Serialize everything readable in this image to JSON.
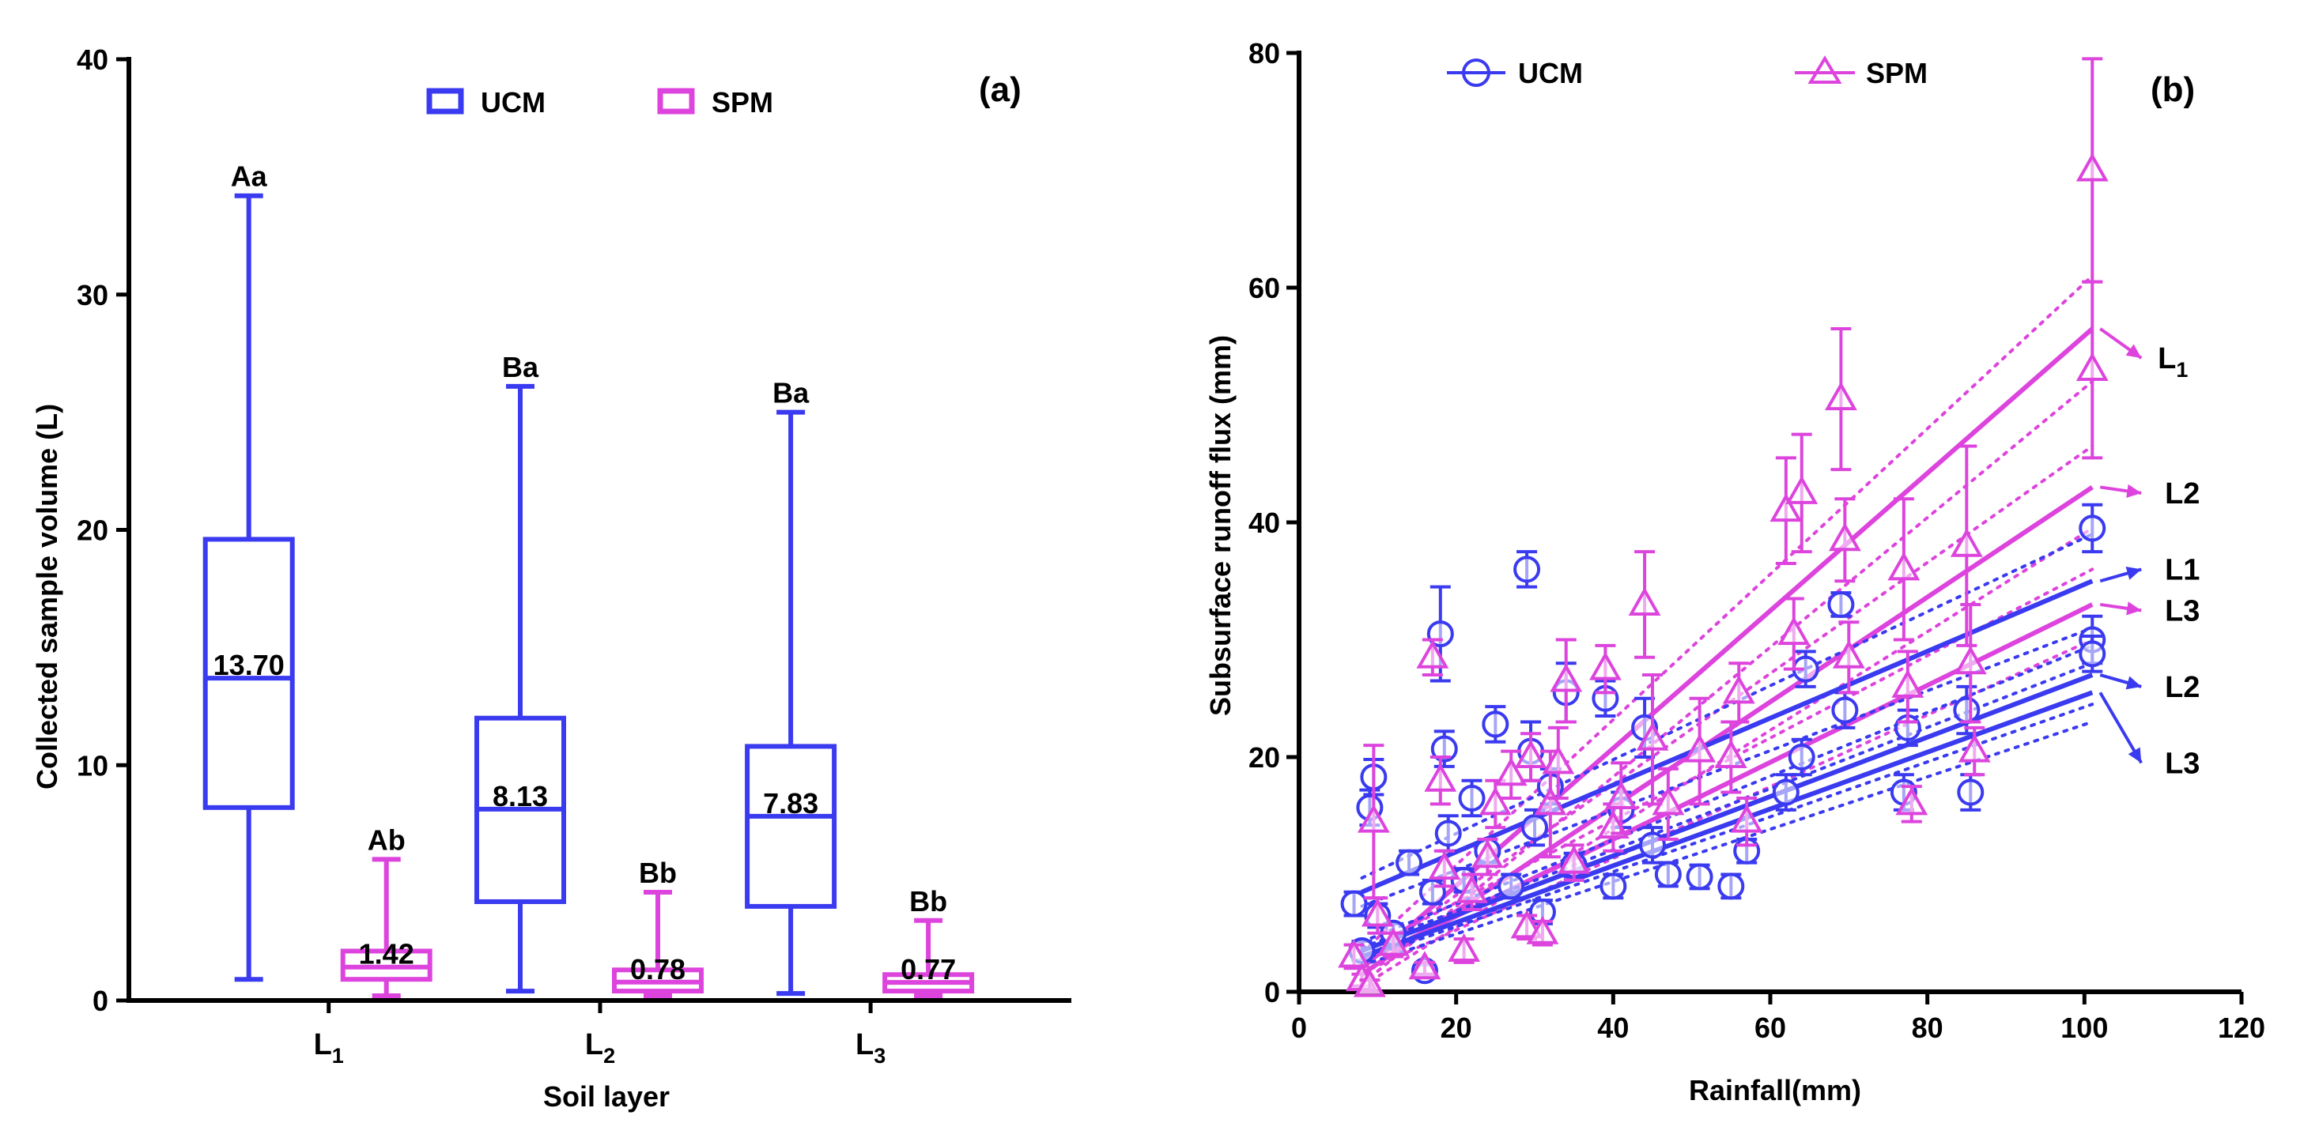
{
  "chart_data": [
    {
      "type": "box",
      "panel_label": "(a)",
      "xlabel": "Soil layer",
      "ylabel": "Collected sample volume (L)",
      "ylim": [
        0,
        40
      ],
      "yticks": [
        "0",
        "10",
        "20",
        "30",
        "40"
      ],
      "categories": [
        {
          "base": "L",
          "sub": "1"
        },
        {
          "base": "L",
          "sub": "2"
        },
        {
          "base": "L",
          "sub": "3"
        }
      ],
      "legend": [
        "UCM",
        "SPM"
      ],
      "colors": {
        "UCM": "#3a3af0",
        "SPM": "#dd44dd"
      },
      "boxes": [
        {
          "group": 0,
          "series": "UCM",
          "min": 0.9,
          "q1": 8.2,
          "median": 13.7,
          "q3": 19.6,
          "max": 34.2,
          "median_label": "13.70",
          "letters": "Aa"
        },
        {
          "group": 0,
          "series": "SPM",
          "min": 0.2,
          "q1": 0.9,
          "median": 1.42,
          "q3": 2.1,
          "max": 6.0,
          "median_label": "1.42",
          "letters": "Ab"
        },
        {
          "group": 1,
          "series": "UCM",
          "min": 0.4,
          "q1": 4.2,
          "median": 8.13,
          "q3": 12.0,
          "max": 26.1,
          "median_label": "8.13",
          "letters": "Ba"
        },
        {
          "group": 1,
          "series": "SPM",
          "min": 0.2,
          "q1": 0.4,
          "median": 0.78,
          "q3": 1.3,
          "max": 4.6,
          "median_label": "0.78",
          "letters": "Bb"
        },
        {
          "group": 2,
          "series": "UCM",
          "min": 0.3,
          "q1": 4.0,
          "median": 7.83,
          "q3": 10.8,
          "max": 25.0,
          "median_label": "7.83",
          "letters": "Ba"
        },
        {
          "group": 2,
          "series": "SPM",
          "min": 0.2,
          "q1": 0.4,
          "median": 0.77,
          "q3": 1.1,
          "max": 3.4,
          "median_label": "0.77",
          "letters": "Bb"
        }
      ]
    },
    {
      "type": "scatter",
      "panel_label": "(b)",
      "xlabel": "Rainfall(mm)",
      "ylabel": "Subsurface runoff flux (mm)",
      "xlim": [
        0,
        120
      ],
      "ylim": [
        0,
        80
      ],
      "xticks": [
        "0",
        "20",
        "40",
        "60",
        "80",
        "100",
        "120"
      ],
      "yticks": [
        "0",
        "20",
        "40",
        "60",
        "80"
      ],
      "legend": [
        "UCM",
        "SPM"
      ],
      "series": [
        {
          "name": "UCM",
          "marker": "circle",
          "color": "#3a3af0",
          "points": [
            {
              "x": 7,
              "y": 7.5,
              "err": 1.0
            },
            {
              "x": 8,
              "y": 3.5,
              "err": 0.8
            },
            {
              "x": 9,
              "y": 15.7,
              "err": 1.5
            },
            {
              "x": 9.5,
              "y": 18.3,
              "err": 1.5
            },
            {
              "x": 10,
              "y": 6.5,
              "err": 1.0
            },
            {
              "x": 12,
              "y": 5.0,
              "err": 0.8
            },
            {
              "x": 14,
              "y": 11.0,
              "err": 1.0
            },
            {
              "x": 16,
              "y": 1.8,
              "err": 0.5
            },
            {
              "x": 17,
              "y": 8.5,
              "err": 1.0
            },
            {
              "x": 18,
              "y": 30.5,
              "err": 4.0
            },
            {
              "x": 18.5,
              "y": 20.7,
              "err": 1.5
            },
            {
              "x": 19,
              "y": 13.5,
              "err": 1.5
            },
            {
              "x": 21,
              "y": 9.5,
              "err": 1.0
            },
            {
              "x": 22,
              "y": 16.5,
              "err": 1.5
            },
            {
              "x": 24,
              "y": 12.0,
              "err": 1.0
            },
            {
              "x": 25,
              "y": 22.8,
              "err": 1.5
            },
            {
              "x": 27,
              "y": 9.0,
              "err": 1.0
            },
            {
              "x": 29,
              "y": 36.0,
              "err": 1.5
            },
            {
              "x": 29.5,
              "y": 20.5,
              "err": 2.5
            },
            {
              "x": 30,
              "y": 14.0,
              "err": 1.5
            },
            {
              "x": 31,
              "y": 6.8,
              "err": 1.0
            },
            {
              "x": 32,
              "y": 17.5,
              "err": 1.5
            },
            {
              "x": 34,
              "y": 25.5,
              "err": 2.5
            },
            {
              "x": 35,
              "y": 10.8,
              "err": 1.0
            },
            {
              "x": 39,
              "y": 25.0,
              "err": 1.5
            },
            {
              "x": 40,
              "y": 9.0,
              "err": 1.0
            },
            {
              "x": 41,
              "y": 15.5,
              "err": 1.5
            },
            {
              "x": 44,
              "y": 22.5,
              "err": 2.5
            },
            {
              "x": 45,
              "y": 12.5,
              "err": 1.5
            },
            {
              "x": 47,
              "y": 10.0,
              "err": 1.0
            },
            {
              "x": 51,
              "y": 9.8,
              "err": 1.0
            },
            {
              "x": 55,
              "y": 9.0,
              "err": 1.0
            },
            {
              "x": 57,
              "y": 12.0,
              "err": 1.0
            },
            {
              "x": 62,
              "y": 17.0,
              "err": 1.5
            },
            {
              "x": 64,
              "y": 20.0,
              "err": 1.5
            },
            {
              "x": 64.5,
              "y": 27.5,
              "err": 1.5
            },
            {
              "x": 69,
              "y": 33.0,
              "err": 1.0
            },
            {
              "x": 69.5,
              "y": 24.0,
              "err": 1.5
            },
            {
              "x": 77,
              "y": 17.0,
              "err": 1.5
            },
            {
              "x": 77.5,
              "y": 22.5,
              "err": 1.5
            },
            {
              "x": 85,
              "y": 24.0,
              "err": 2.0
            },
            {
              "x": 85.5,
              "y": 17.0,
              "err": 1.5
            },
            {
              "x": 101,
              "y": 39.5,
              "err": 2.0
            },
            {
              "x": 101,
              "y": 30.0,
              "err": 2.0
            },
            {
              "x": 101,
              "y": 28.8,
              "err": 1.5
            }
          ]
        },
        {
          "name": "SPM",
          "marker": "triangle",
          "color": "#dd44dd",
          "points": [
            {
              "x": 7,
              "y": 3.0,
              "err": 1.0
            },
            {
              "x": 8,
              "y": 1.0,
              "err": 0.5
            },
            {
              "x": 9,
              "y": 0.5,
              "err": 0.5
            },
            {
              "x": 9.5,
              "y": 14.5,
              "err": 6.5
            },
            {
              "x": 10,
              "y": 6.5,
              "err": 1.5
            },
            {
              "x": 12,
              "y": 4.0,
              "err": 1.0
            },
            {
              "x": 16,
              "y": 2.0,
              "err": 0.5
            },
            {
              "x": 17,
              "y": 28.5,
              "err": 1.5
            },
            {
              "x": 18,
              "y": 18.0,
              "err": 2.0
            },
            {
              "x": 18.5,
              "y": 10.5,
              "err": 1.5
            },
            {
              "x": 21,
              "y": 3.5,
              "err": 1.0
            },
            {
              "x": 22,
              "y": 8.5,
              "err": 1.5
            },
            {
              "x": 24,
              "y": 11.5,
              "err": 1.5
            },
            {
              "x": 25,
              "y": 16.0,
              "err": 2.0
            },
            {
              "x": 27,
              "y": 18.5,
              "err": 2.0
            },
            {
              "x": 29,
              "y": 5.5,
              "err": 1.0
            },
            {
              "x": 29.5,
              "y": 20.0,
              "err": 2.0
            },
            {
              "x": 31,
              "y": 5.0,
              "err": 1.0
            },
            {
              "x": 32,
              "y": 16.0,
              "err": 4.5
            },
            {
              "x": 33,
              "y": 19.5,
              "err": 3.0
            },
            {
              "x": 34,
              "y": 26.5,
              "err": 3.5
            },
            {
              "x": 35,
              "y": 11.0,
              "err": 1.5
            },
            {
              "x": 39,
              "y": 27.5,
              "err": 2.0
            },
            {
              "x": 40,
              "y": 14.0,
              "err": 2.0
            },
            {
              "x": 41,
              "y": 16.5,
              "err": 3.0
            },
            {
              "x": 44,
              "y": 33.0,
              "err": 4.5
            },
            {
              "x": 45,
              "y": 21.5,
              "err": 5.5
            },
            {
              "x": 47,
              "y": 16.0,
              "err": 3.0
            },
            {
              "x": 51,
              "y": 20.5,
              "err": 4.5
            },
            {
              "x": 55,
              "y": 20.0,
              "err": 3.0
            },
            {
              "x": 56,
              "y": 25.5,
              "err": 2.5
            },
            {
              "x": 57,
              "y": 14.5,
              "err": 2.0
            },
            {
              "x": 62,
              "y": 41.0,
              "err": 4.5
            },
            {
              "x": 63,
              "y": 30.5,
              "err": 3.0
            },
            {
              "x": 64,
              "y": 42.5,
              "err": 5.0
            },
            {
              "x": 69,
              "y": 50.5,
              "err": 6.0
            },
            {
              "x": 69.5,
              "y": 38.5,
              "err": 3.5
            },
            {
              "x": 70,
              "y": 28.5,
              "err": 3.0
            },
            {
              "x": 77,
              "y": 36.0,
              "err": 6.0
            },
            {
              "x": 77.5,
              "y": 26.0,
              "err": 3.0
            },
            {
              "x": 78,
              "y": 16.0,
              "err": 1.5
            },
            {
              "x": 85,
              "y": 38.0,
              "err": 8.5
            },
            {
              "x": 85.5,
              "y": 28.0,
              "err": 5.0
            },
            {
              "x": 86,
              "y": 20.5,
              "err": 2.0
            },
            {
              "x": 101,
              "y": 70.0,
              "err": 9.5
            },
            {
              "x": 101,
              "y": 53.0,
              "err": 7.5
            }
          ]
        }
      ],
      "regressions": [
        {
          "series": "SPM",
          "label": "L1",
          "sub": true,
          "x0": 8,
          "y0": 2.0,
          "x1": 101,
          "y1": 56.5,
          "band": 4.5,
          "label_y": 54.0
        },
        {
          "series": "SPM",
          "label": "L2",
          "sub": false,
          "x0": 8,
          "y0": 1.5,
          "x1": 101,
          "y1": 43.0,
          "band": 3.5,
          "label_y": 42.5
        },
        {
          "series": "SPM",
          "label": "L3",
          "sub": false,
          "x0": 8,
          "y0": 2.5,
          "x1": 101,
          "y1": 33.0,
          "band": 3.0,
          "label_y": 32.5
        },
        {
          "series": "UCM",
          "label": "L1",
          "sub": false,
          "x0": 8,
          "y0": 8.5,
          "x1": 101,
          "y1": 35.0,
          "band": 4.0,
          "label_y": 36.0
        },
        {
          "series": "UCM",
          "label": "L2",
          "sub": false,
          "x0": 8,
          "y0": 3.5,
          "x1": 101,
          "y1": 27.0,
          "band": 2.5,
          "label_y": 26.0
        },
        {
          "series": "UCM",
          "label": "L3",
          "sub": false,
          "x0": 8,
          "y0": 3.0,
          "x1": 101,
          "y1": 25.5,
          "band": 2.5,
          "label_y": 19.5
        }
      ]
    }
  ]
}
